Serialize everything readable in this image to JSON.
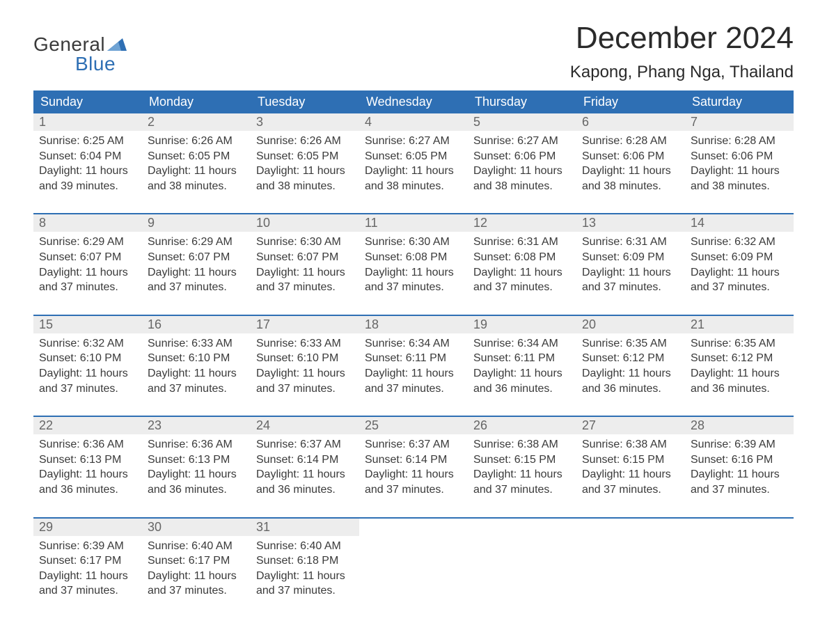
{
  "logo": {
    "line1": "General",
    "line2": "Blue",
    "flag_color": "#2e6fb4"
  },
  "title": "December 2024",
  "location": "Kapong, Phang Nga, Thailand",
  "colors": {
    "header_bg": "#2e6fb4",
    "header_text": "#ffffff",
    "daynum_bg": "#ededed",
    "daynum_text": "#666666",
    "body_text": "#3a3a3a",
    "week_border": "#2e6fb4",
    "page_bg": "#ffffff"
  },
  "typography": {
    "title_fontsize": 44,
    "location_fontsize": 24,
    "weekday_fontsize": 18,
    "daynum_fontsize": 18,
    "cell_fontsize": 16,
    "font_family": "Arial"
  },
  "weekdays": [
    "Sunday",
    "Monday",
    "Tuesday",
    "Wednesday",
    "Thursday",
    "Friday",
    "Saturday"
  ],
  "weeks": [
    [
      {
        "day": "1",
        "sunrise": "Sunrise: 6:25 AM",
        "sunset": "Sunset: 6:04 PM",
        "dl1": "Daylight: 11 hours",
        "dl2": "and 39 minutes."
      },
      {
        "day": "2",
        "sunrise": "Sunrise: 6:26 AM",
        "sunset": "Sunset: 6:05 PM",
        "dl1": "Daylight: 11 hours",
        "dl2": "and 38 minutes."
      },
      {
        "day": "3",
        "sunrise": "Sunrise: 6:26 AM",
        "sunset": "Sunset: 6:05 PM",
        "dl1": "Daylight: 11 hours",
        "dl2": "and 38 minutes."
      },
      {
        "day": "4",
        "sunrise": "Sunrise: 6:27 AM",
        "sunset": "Sunset: 6:05 PM",
        "dl1": "Daylight: 11 hours",
        "dl2": "and 38 minutes."
      },
      {
        "day": "5",
        "sunrise": "Sunrise: 6:27 AM",
        "sunset": "Sunset: 6:06 PM",
        "dl1": "Daylight: 11 hours",
        "dl2": "and 38 minutes."
      },
      {
        "day": "6",
        "sunrise": "Sunrise: 6:28 AM",
        "sunset": "Sunset: 6:06 PM",
        "dl1": "Daylight: 11 hours",
        "dl2": "and 38 minutes."
      },
      {
        "day": "7",
        "sunrise": "Sunrise: 6:28 AM",
        "sunset": "Sunset: 6:06 PM",
        "dl1": "Daylight: 11 hours",
        "dl2": "and 38 minutes."
      }
    ],
    [
      {
        "day": "8",
        "sunrise": "Sunrise: 6:29 AM",
        "sunset": "Sunset: 6:07 PM",
        "dl1": "Daylight: 11 hours",
        "dl2": "and 37 minutes."
      },
      {
        "day": "9",
        "sunrise": "Sunrise: 6:29 AM",
        "sunset": "Sunset: 6:07 PM",
        "dl1": "Daylight: 11 hours",
        "dl2": "and 37 minutes."
      },
      {
        "day": "10",
        "sunrise": "Sunrise: 6:30 AM",
        "sunset": "Sunset: 6:07 PM",
        "dl1": "Daylight: 11 hours",
        "dl2": "and 37 minutes."
      },
      {
        "day": "11",
        "sunrise": "Sunrise: 6:30 AM",
        "sunset": "Sunset: 6:08 PM",
        "dl1": "Daylight: 11 hours",
        "dl2": "and 37 minutes."
      },
      {
        "day": "12",
        "sunrise": "Sunrise: 6:31 AM",
        "sunset": "Sunset: 6:08 PM",
        "dl1": "Daylight: 11 hours",
        "dl2": "and 37 minutes."
      },
      {
        "day": "13",
        "sunrise": "Sunrise: 6:31 AM",
        "sunset": "Sunset: 6:09 PM",
        "dl1": "Daylight: 11 hours",
        "dl2": "and 37 minutes."
      },
      {
        "day": "14",
        "sunrise": "Sunrise: 6:32 AM",
        "sunset": "Sunset: 6:09 PM",
        "dl1": "Daylight: 11 hours",
        "dl2": "and 37 minutes."
      }
    ],
    [
      {
        "day": "15",
        "sunrise": "Sunrise: 6:32 AM",
        "sunset": "Sunset: 6:10 PM",
        "dl1": "Daylight: 11 hours",
        "dl2": "and 37 minutes."
      },
      {
        "day": "16",
        "sunrise": "Sunrise: 6:33 AM",
        "sunset": "Sunset: 6:10 PM",
        "dl1": "Daylight: 11 hours",
        "dl2": "and 37 minutes."
      },
      {
        "day": "17",
        "sunrise": "Sunrise: 6:33 AM",
        "sunset": "Sunset: 6:10 PM",
        "dl1": "Daylight: 11 hours",
        "dl2": "and 37 minutes."
      },
      {
        "day": "18",
        "sunrise": "Sunrise: 6:34 AM",
        "sunset": "Sunset: 6:11 PM",
        "dl1": "Daylight: 11 hours",
        "dl2": "and 37 minutes."
      },
      {
        "day": "19",
        "sunrise": "Sunrise: 6:34 AM",
        "sunset": "Sunset: 6:11 PM",
        "dl1": "Daylight: 11 hours",
        "dl2": "and 36 minutes."
      },
      {
        "day": "20",
        "sunrise": "Sunrise: 6:35 AM",
        "sunset": "Sunset: 6:12 PM",
        "dl1": "Daylight: 11 hours",
        "dl2": "and 36 minutes."
      },
      {
        "day": "21",
        "sunrise": "Sunrise: 6:35 AM",
        "sunset": "Sunset: 6:12 PM",
        "dl1": "Daylight: 11 hours",
        "dl2": "and 36 minutes."
      }
    ],
    [
      {
        "day": "22",
        "sunrise": "Sunrise: 6:36 AM",
        "sunset": "Sunset: 6:13 PM",
        "dl1": "Daylight: 11 hours",
        "dl2": "and 36 minutes."
      },
      {
        "day": "23",
        "sunrise": "Sunrise: 6:36 AM",
        "sunset": "Sunset: 6:13 PM",
        "dl1": "Daylight: 11 hours",
        "dl2": "and 36 minutes."
      },
      {
        "day": "24",
        "sunrise": "Sunrise: 6:37 AM",
        "sunset": "Sunset: 6:14 PM",
        "dl1": "Daylight: 11 hours",
        "dl2": "and 36 minutes."
      },
      {
        "day": "25",
        "sunrise": "Sunrise: 6:37 AM",
        "sunset": "Sunset: 6:14 PM",
        "dl1": "Daylight: 11 hours",
        "dl2": "and 37 minutes."
      },
      {
        "day": "26",
        "sunrise": "Sunrise: 6:38 AM",
        "sunset": "Sunset: 6:15 PM",
        "dl1": "Daylight: 11 hours",
        "dl2": "and 37 minutes."
      },
      {
        "day": "27",
        "sunrise": "Sunrise: 6:38 AM",
        "sunset": "Sunset: 6:15 PM",
        "dl1": "Daylight: 11 hours",
        "dl2": "and 37 minutes."
      },
      {
        "day": "28",
        "sunrise": "Sunrise: 6:39 AM",
        "sunset": "Sunset: 6:16 PM",
        "dl1": "Daylight: 11 hours",
        "dl2": "and 37 minutes."
      }
    ],
    [
      {
        "day": "29",
        "sunrise": "Sunrise: 6:39 AM",
        "sunset": "Sunset: 6:17 PM",
        "dl1": "Daylight: 11 hours",
        "dl2": "and 37 minutes."
      },
      {
        "day": "30",
        "sunrise": "Sunrise: 6:40 AM",
        "sunset": "Sunset: 6:17 PM",
        "dl1": "Daylight: 11 hours",
        "dl2": "and 37 minutes."
      },
      {
        "day": "31",
        "sunrise": "Sunrise: 6:40 AM",
        "sunset": "Sunset: 6:18 PM",
        "dl1": "Daylight: 11 hours",
        "dl2": "and 37 minutes."
      },
      null,
      null,
      null,
      null
    ]
  ]
}
